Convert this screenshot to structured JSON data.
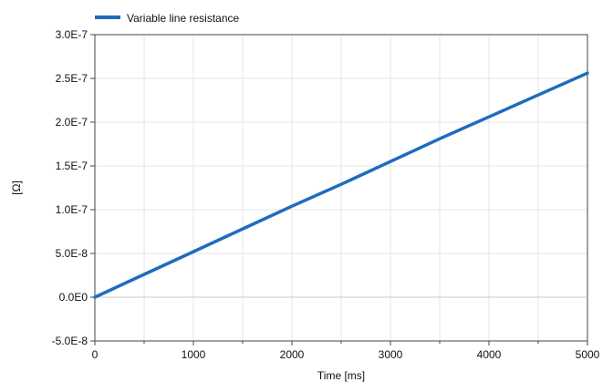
{
  "chart_data": {
    "type": "line",
    "xlabel": "Time [ms]",
    "ylabel": "[Ω]",
    "xlim": [
      0,
      5000
    ],
    "ylim": [
      -5e-08,
      3e-07
    ],
    "x_ticks": [
      0,
      1000,
      2000,
      3000,
      4000,
      5000
    ],
    "x_tick_labels": [
      "0",
      "1000",
      "2000",
      "3000",
      "4000",
      "5000"
    ],
    "y_ticks": [
      -5e-08,
      0,
      5e-08,
      1e-07,
      1.5e-07,
      2e-07,
      2.5e-07,
      3e-07
    ],
    "y_tick_labels": [
      "-5.0E-8",
      "0.0E0",
      "5.0E-8",
      "1.0E-7",
      "1.5E-7",
      "2.0E-7",
      "2.5E-7",
      "3.0E-7"
    ],
    "grid": true,
    "legend_position": "top-left",
    "series": [
      {
        "name": "Variable line resistance",
        "color": "#1f6bbf",
        "x": [
          0,
          500,
          1000,
          1500,
          2000,
          2500,
          3000,
          3500,
          4000,
          4500,
          5000
        ],
        "y": [
          0,
          2.6e-08,
          5.2e-08,
          7.8e-08,
          1.04e-07,
          1.29e-07,
          1.55e-07,
          1.81e-07,
          2.06e-07,
          2.31e-07,
          2.56e-07
        ]
      }
    ]
  }
}
